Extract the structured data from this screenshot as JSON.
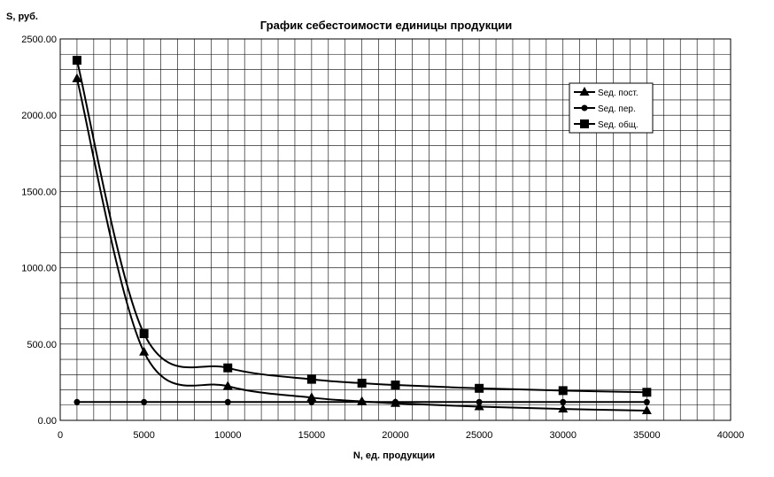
{
  "chart_data": {
    "type": "line",
    "title": "График себестоимости единицы продукции",
    "xlabel": "N, ед. продукции",
    "ylabel": "S, руб.",
    "xlim": [
      0,
      40000
    ],
    "ylim": [
      0,
      2500
    ],
    "x_ticks": [
      "0",
      "5000",
      "10000",
      "15000",
      "20000",
      "25000",
      "30000",
      "35000",
      "40000"
    ],
    "y_ticks": [
      "0.00",
      "500.00",
      "1000.00",
      "1500.00",
      "2000.00",
      "2500.00"
    ],
    "grid": true,
    "legend_position": "top-right",
    "x": [
      1000,
      5000,
      10000,
      15000,
      18000,
      20000,
      25000,
      30000,
      35000
    ],
    "series": [
      {
        "name": "Sед. пост.",
        "marker": "triangle",
        "values": [
          2240,
          448,
          224,
          149,
          124,
          112,
          90,
          75,
          64
        ]
      },
      {
        "name": "Sед. пер.",
        "marker": "circle",
        "values": [
          120,
          120,
          120,
          120,
          120,
          120,
          120,
          120,
          120
        ]
      },
      {
        "name": "Sед. общ.",
        "marker": "square",
        "values": [
          2360,
          568,
          344,
          269,
          244,
          232,
          210,
          195,
          184
        ]
      }
    ]
  }
}
